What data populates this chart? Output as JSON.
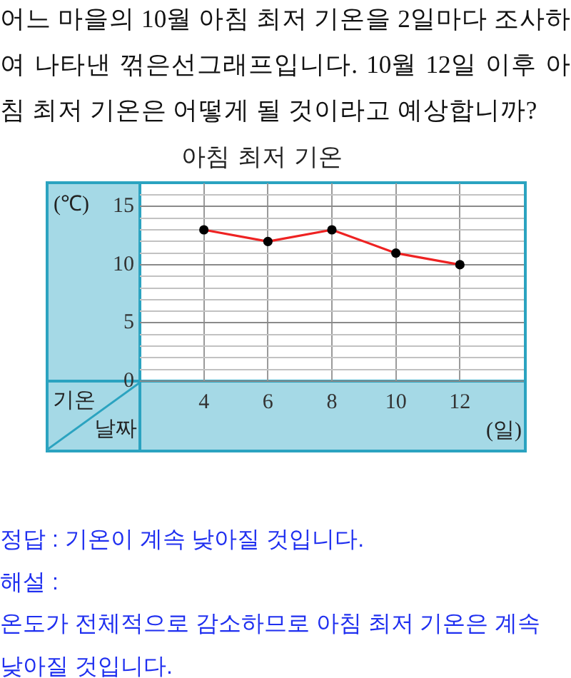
{
  "chart_data": {
    "type": "line",
    "title": "아침 최저 기온",
    "xlabel": "날짜",
    "ylabel": "기온",
    "annotations": [
      "어느 마을의 10월 아침 최저 기온을 2일마다 조사하여 나타낸 꺾은선그래프입니다. 10월 12일 이후 아침 최저 기온은 어떻게 될 것이라고 예상합니까?",
      "(℃)",
      "(일)",
      "정답 : 기온이 계속 낮아질 것입니다.",
      "해설 :",
      "온도가 전체적으로 감소하므로 아침 최저 기온은 계속 낮아질 것입니다."
    ],
    "x": [
      4,
      6,
      8,
      10,
      12
    ],
    "series": [
      {
        "color": "#ee2222",
        "values": [
          13,
          12,
          13,
          11,
          10
        ]
      }
    ],
    "xlim": [
      2,
      14
    ],
    "xticks": [
      4,
      6,
      8,
      10,
      12
    ],
    "ylim": [
      0,
      17
    ],
    "yticks": [
      0,
      {
        "value": 1,
        "label": null
      },
      {
        "value": 2,
        "label": null
      },
      {
        "value": 3,
        "label": null
      },
      {
        "value": 4,
        "label": null
      },
      5,
      {
        "value": 6,
        "label": null
      },
      {
        "value": 7,
        "label": null
      },
      {
        "value": 8,
        "label": null
      },
      {
        "value": 9,
        "label": null
      },
      10,
      {
        "value": 11,
        "label": null
      },
      {
        "value": 12,
        "label": null
      },
      {
        "value": 13,
        "label": null
      },
      {
        "value": 14,
        "label": null
      },
      15,
      {
        "value": 16,
        "label": null
      }
    ],
    "grid": true,
    "marker": "circle",
    "line_style": "solid"
  }
}
